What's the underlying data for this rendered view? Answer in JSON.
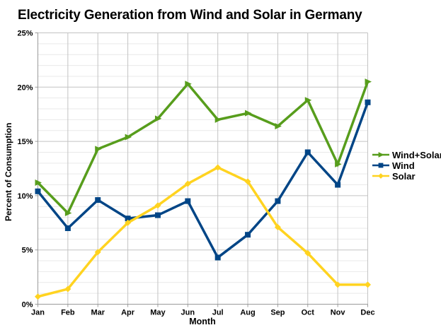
{
  "chart_data": {
    "type": "line",
    "title": "Electricity Generation from Wind and Solar in Germany",
    "xlabel": "Month",
    "ylabel": "Percent of Consumption",
    "categories": [
      "Jan",
      "Feb",
      "Mar",
      "Apr",
      "May",
      "Jun",
      "Jul",
      "Aug",
      "Sep",
      "Oct",
      "Nov",
      "Dec"
    ],
    "ylim": [
      0,
      25
    ],
    "ytick_major_interval": 5,
    "ytick_minor_interval": 1,
    "ytick_labels": [
      "0%",
      "5%",
      "10%",
      "15%",
      "20%",
      "25%"
    ],
    "grid": true,
    "legend_position": "right-middle",
    "series": [
      {
        "name": "Wind+Solar",
        "color": "#579D1C",
        "marker": "arrow",
        "values": [
          11.2,
          8.4,
          14.3,
          15.4,
          17.1,
          20.3,
          17.0,
          17.6,
          16.4,
          18.8,
          12.9,
          20.5
        ]
      },
      {
        "name": "Wind",
        "color": "#004586",
        "marker": "square",
        "values": [
          10.4,
          7.0,
          9.6,
          7.9,
          8.2,
          9.5,
          4.3,
          6.4,
          9.5,
          14.0,
          11.0,
          18.6
        ]
      },
      {
        "name": "Solar",
        "color": "#FFD320",
        "marker": "diamond",
        "values": [
          0.7,
          1.4,
          4.8,
          7.5,
          9.1,
          11.1,
          12.6,
          11.3,
          7.1,
          4.7,
          1.8,
          1.8
        ]
      }
    ],
    "style": {
      "axis_color": "#9a9a9a",
      "grid_major_color": "#c3c3c3",
      "grid_minor_color": "#e9e9e9",
      "text_color": "#000000",
      "background": "#ffffff"
    }
  }
}
